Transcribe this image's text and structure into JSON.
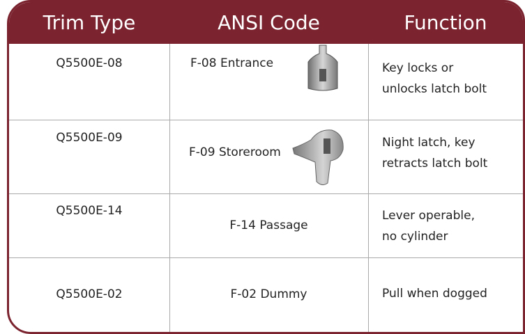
{
  "header": {
    "columns": [
      "Trim Type",
      "ANSI Code",
      "Function"
    ]
  },
  "table": {
    "rows": [
      [
        "Q5500E-08",
        "F-08 Entrance",
        [
          "Key locks or",
          "unlocks latch bolt"
        ]
      ],
      [
        "Q5500E-09",
        "F-09 Storeroom",
        [
          "Night latch, key",
          "retracts latch bolt"
        ]
      ],
      [
        "Q5500E-14",
        "F-14 Passage",
        [
          "Lever operable,",
          "no cylinder"
        ]
      ],
      [
        "Q5500E-02",
        "F-02 Dummy",
        [
          "Pull when dogged"
        ]
      ]
    ]
  }
}
